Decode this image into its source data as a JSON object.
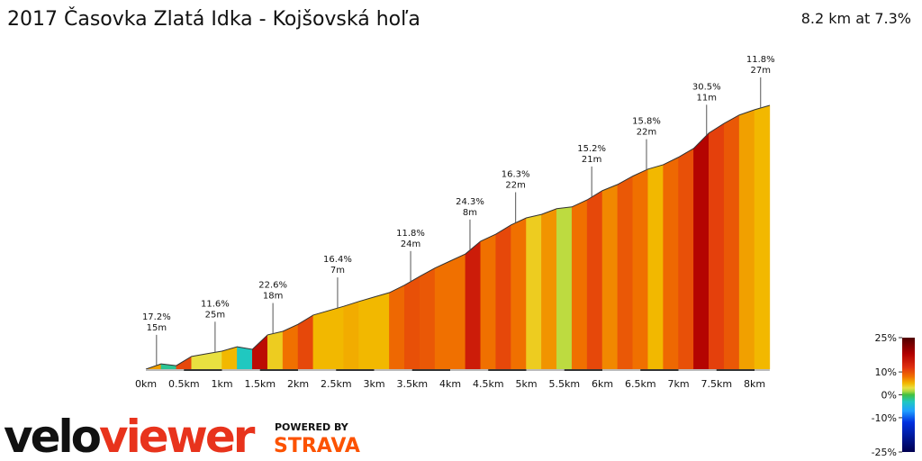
{
  "header": {
    "title": "2017 Časovka Zlatá Idka - Kojšovská hoľa",
    "summary": "8.2 km at 7.3%"
  },
  "chart_data": {
    "type": "area",
    "x": [
      0,
      0.2,
      0.4,
      0.6,
      0.8,
      1,
      1.2,
      1.4,
      1.6,
      1.8,
      2,
      2.2,
      2.4,
      2.6,
      2.8,
      3,
      3.2,
      3.4,
      3.6,
      3.8,
      4,
      4.2,
      4.4,
      4.6,
      4.8,
      5,
      5.2,
      5.4,
      5.6,
      5.8,
      6,
      6.2,
      6.4,
      6.6,
      6.8,
      7,
      7.2,
      7.4,
      7.6,
      7.8,
      8,
      8.2
    ],
    "values": [
      0,
      12,
      8,
      29,
      35,
      41,
      51,
      45,
      78,
      86,
      102,
      123,
      133,
      143,
      154,
      164,
      174,
      191,
      211,
      230,
      246,
      262,
      291,
      307,
      328,
      344,
      352,
      365,
      369,
      385,
      406,
      420,
      439,
      455,
      465,
      482,
      502,
      537,
      559,
      578,
      590,
      600
    ],
    "xticks": [
      {
        "value": 0,
        "label": "0km"
      },
      {
        "value": 0.5,
        "label": "0.5km"
      },
      {
        "value": 1,
        "label": "1km"
      },
      {
        "value": 1.5,
        "label": "1.5km"
      },
      {
        "value": 2,
        "label": "2km"
      },
      {
        "value": 2.5,
        "label": "2.5km"
      },
      {
        "value": 3,
        "label": "3km"
      },
      {
        "value": 3.5,
        "label": "3.5km"
      },
      {
        "value": 4,
        "label": "4km"
      },
      {
        "value": 4.5,
        "label": "4.5km"
      },
      {
        "value": 5,
        "label": "5km"
      },
      {
        "value": 5.5,
        "label": "5.5km"
      },
      {
        "value": 6,
        "label": "6km"
      },
      {
        "value": 6.5,
        "label": "6.5km"
      },
      {
        "value": 7,
        "label": "7km"
      },
      {
        "value": 7.5,
        "label": "7.5km"
      },
      {
        "value": 8,
        "label": "8km"
      }
    ],
    "annotations": [
      {
        "x": 0.14,
        "grade": "17.2%",
        "length": "15m"
      },
      {
        "x": 0.91,
        "grade": "11.6%",
        "length": "25m"
      },
      {
        "x": 1.67,
        "grade": "22.6%",
        "length": "18m"
      },
      {
        "x": 2.52,
        "grade": "16.4%",
        "length": "7m"
      },
      {
        "x": 3.48,
        "grade": "11.8%",
        "length": "24m"
      },
      {
        "x": 4.26,
        "grade": "24.3%",
        "length": "8m"
      },
      {
        "x": 4.86,
        "grade": "16.3%",
        "length": "22m"
      },
      {
        "x": 5.86,
        "grade": "15.2%",
        "length": "21m"
      },
      {
        "x": 6.58,
        "grade": "15.8%",
        "length": "22m"
      },
      {
        "x": 7.37,
        "grade": "30.5%",
        "length": "11m"
      },
      {
        "x": 8.08,
        "grade": "11.8%",
        "length": "27m"
      }
    ],
    "colorbar": {
      "ylim": [
        -25,
        25
      ],
      "yticks": [
        {
          "value": 25,
          "label": "25%"
        },
        {
          "value": 10,
          "label": "10%"
        },
        {
          "value": 0,
          "label": "0%"
        },
        {
          "value": -10,
          "label": "-10%"
        },
        {
          "value": -25,
          "label": "-25%"
        }
      ],
      "colors": [
        {
          "value": -25,
          "color": "#000050"
        },
        {
          "value": -12,
          "color": "#0030e0"
        },
        {
          "value": -7,
          "color": "#20a0ff"
        },
        {
          "value": -3,
          "color": "#20c8c0"
        },
        {
          "value": 0,
          "color": "#40c040"
        },
        {
          "value": 1.5,
          "color": "#a8d840"
        },
        {
          "value": 3,
          "color": "#e8e040"
        },
        {
          "value": 5,
          "color": "#f2b800"
        },
        {
          "value": 8,
          "color": "#f07000"
        },
        {
          "value": 12,
          "color": "#e03010"
        },
        {
          "value": 18,
          "color": "#b00000"
        },
        {
          "value": 25,
          "color": "#500000"
        }
      ]
    }
  },
  "logo": {
    "part1": "velo",
    "part2": "viewer",
    "powered": "POWERED BY",
    "brand": "STRAVA"
  }
}
